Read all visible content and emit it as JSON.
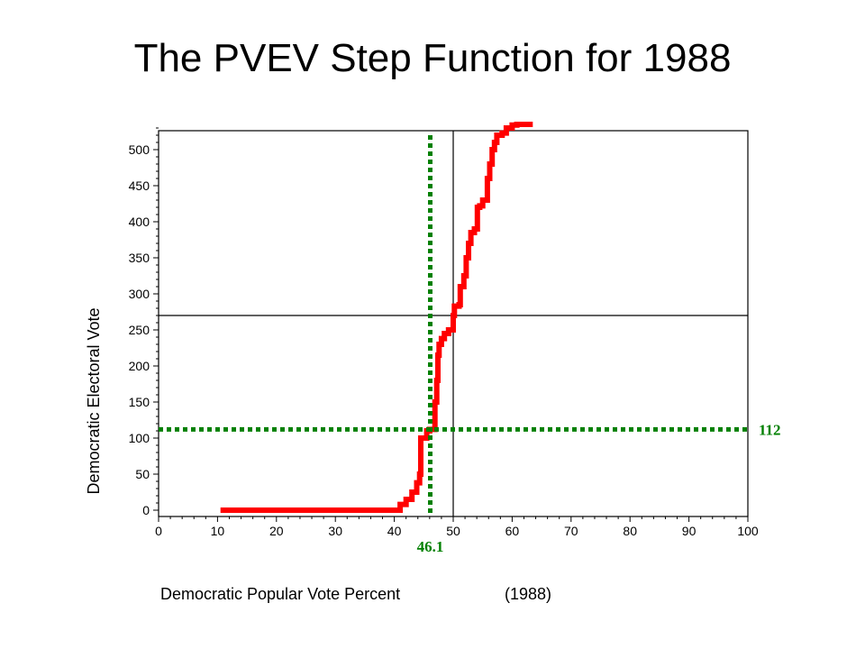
{
  "slide": {
    "title": "The PVEV Step Function for 1988"
  },
  "chart_data": {
    "type": "line",
    "title": "The PVEV Step Function for 1988",
    "xlabel": "Democratic Popular Vote Percent",
    "xlabel_note": "(1988)",
    "ylabel": "Democratic Electoral Vote",
    "xlim": [
      0,
      100
    ],
    "ylim": [
      0,
      538
    ],
    "x_ticks": [
      0,
      10,
      20,
      30,
      40,
      50,
      60,
      70,
      80,
      90,
      100
    ],
    "y_ticks": [
      0,
      50,
      100,
      150,
      200,
      250,
      300,
      350,
      400,
      450,
      500
    ],
    "grid": false,
    "reference_lines": {
      "vertical_x": 50,
      "horizontal_y": 270
    },
    "annotations": {
      "actual_vote_x": 46.1,
      "actual_vote_label": "46.1",
      "actual_ev_y": 112,
      "actual_ev_label": "112",
      "color": "#008000"
    },
    "series": [
      {
        "color": "#ff0000",
        "x": [
          10.5,
          40.0,
          41.0,
          42.0,
          43.0,
          43.8,
          44.3,
          44.5,
          45.5,
          46.0,
          46.5,
          46.9,
          47.2,
          47.4,
          47.6,
          48.0,
          48.5,
          49.2,
          50.0,
          50.2,
          51.0,
          51.2,
          51.8,
          52.2,
          52.6,
          53.0,
          53.6,
          54.1,
          54.5,
          55.0,
          55.8,
          56.2,
          56.6,
          57.0,
          57.4,
          58.3,
          59.0,
          60.0,
          60.8,
          63.5
        ],
        "y": [
          0,
          0,
          8,
          15,
          25,
          38,
          50,
          100,
          110,
          112,
          112,
          150,
          180,
          215,
          230,
          238,
          245,
          250,
          270,
          283,
          285,
          310,
          325,
          350,
          370,
          385,
          390,
          420,
          422,
          430,
          460,
          480,
          500,
          510,
          520,
          523,
          530,
          534,
          535,
          535
        ]
      }
    ]
  }
}
